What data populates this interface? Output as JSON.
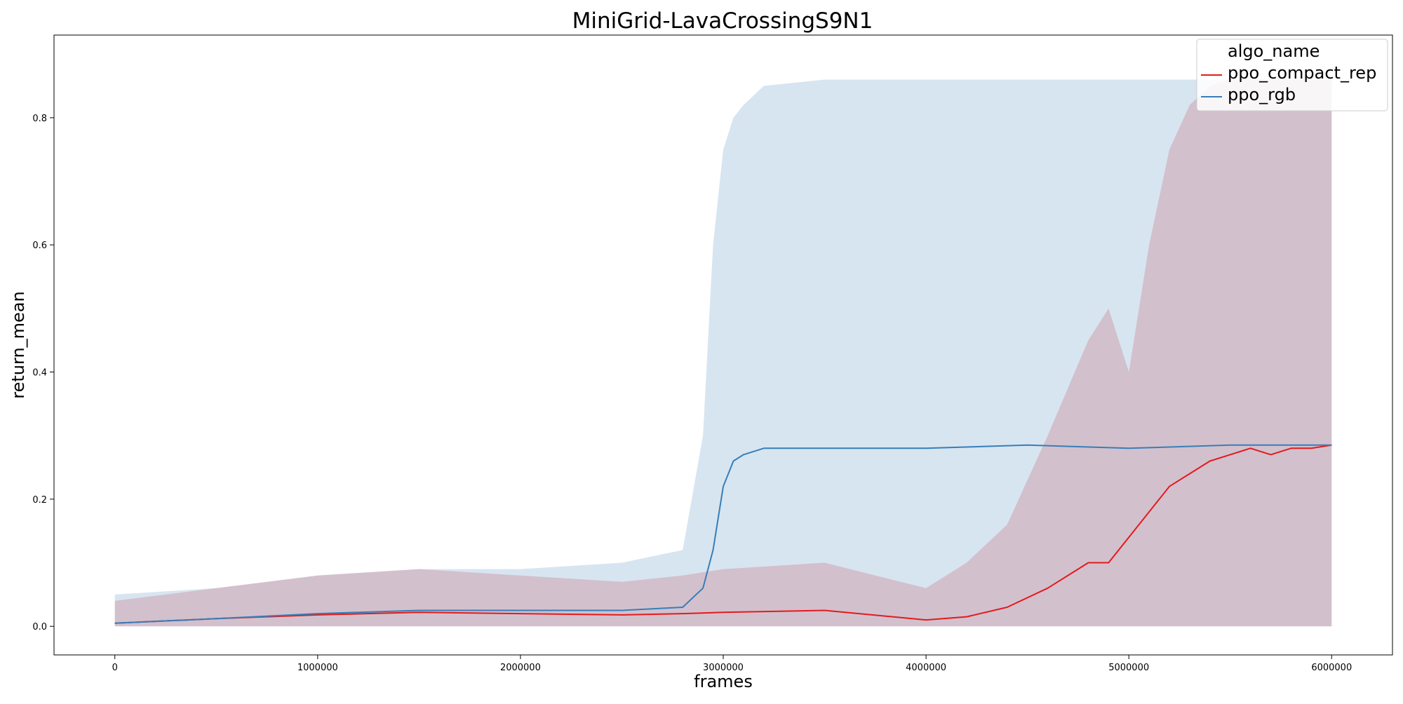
{
  "chart_data": {
    "type": "line",
    "title": "MiniGrid-LavaCrossingS9N1",
    "xlabel": "frames",
    "ylabel": "return_mean",
    "xlim": [
      -300000,
      6300000
    ],
    "ylim": [
      -0.045,
      0.93
    ],
    "xticks": [
      0,
      1000000,
      2000000,
      3000000,
      4000000,
      5000000,
      6000000
    ],
    "xtick_labels": [
      "0",
      "1000000",
      "2000000",
      "3000000",
      "4000000",
      "5000000",
      "6000000"
    ],
    "yticks": [
      0.0,
      0.2,
      0.4,
      0.6,
      0.8
    ],
    "ytick_labels": [
      "0.0",
      "0.2",
      "0.4",
      "0.6",
      "0.8"
    ],
    "grid": false,
    "legend": {
      "title": "algo_name",
      "placement": "top-right"
    },
    "series": [
      {
        "name": "ppo_compact_rep",
        "color": "#e41a1c",
        "x": [
          0,
          500000,
          1000000,
          1500000,
          2000000,
          2500000,
          2800000,
          3000000,
          3500000,
          4000000,
          4200000,
          4400000,
          4600000,
          4800000,
          4900000,
          5000000,
          5100000,
          5200000,
          5300000,
          5400000,
          5500000,
          5600000,
          5700000,
          5800000,
          5900000,
          6000000
        ],
        "mean": [
          0.005,
          0.012,
          0.018,
          0.022,
          0.02,
          0.018,
          0.02,
          0.022,
          0.025,
          0.01,
          0.015,
          0.03,
          0.06,
          0.1,
          0.1,
          0.14,
          0.18,
          0.22,
          0.24,
          0.26,
          0.27,
          0.28,
          0.27,
          0.28,
          0.28,
          0.285
        ],
        "lower": [
          0,
          0,
          0,
          0,
          0,
          0,
          0,
          0,
          0,
          0,
          0,
          0,
          0,
          0,
          0,
          0,
          0,
          0,
          0,
          0,
          0,
          0,
          0,
          0,
          0,
          0
        ],
        "upper": [
          0.04,
          0.06,
          0.08,
          0.09,
          0.08,
          0.07,
          0.08,
          0.09,
          0.1,
          0.06,
          0.1,
          0.16,
          0.3,
          0.45,
          0.5,
          0.4,
          0.6,
          0.75,
          0.82,
          0.85,
          0.86,
          0.86,
          0.86,
          0.86,
          0.86,
          0.86
        ]
      },
      {
        "name": "ppo_rgb",
        "color": "#377eb8",
        "x": [
          0,
          500000,
          1000000,
          1500000,
          2000000,
          2500000,
          2800000,
          2900000,
          2950000,
          3000000,
          3050000,
          3100000,
          3200000,
          3500000,
          4000000,
          4500000,
          5000000,
          5500000,
          6000000
        ],
        "mean": [
          0.005,
          0.012,
          0.02,
          0.025,
          0.025,
          0.025,
          0.03,
          0.06,
          0.12,
          0.22,
          0.26,
          0.27,
          0.28,
          0.28,
          0.28,
          0.285,
          0.28,
          0.285,
          0.285
        ],
        "lower": [
          0,
          0,
          0,
          0,
          0,
          0,
          0,
          0,
          0,
          0,
          0,
          0,
          0,
          0,
          0,
          0,
          0,
          0,
          0
        ],
        "upper": [
          0.05,
          0.06,
          0.08,
          0.09,
          0.09,
          0.1,
          0.12,
          0.3,
          0.6,
          0.75,
          0.8,
          0.82,
          0.85,
          0.86,
          0.86,
          0.86,
          0.86,
          0.86,
          0.86
        ]
      }
    ]
  }
}
